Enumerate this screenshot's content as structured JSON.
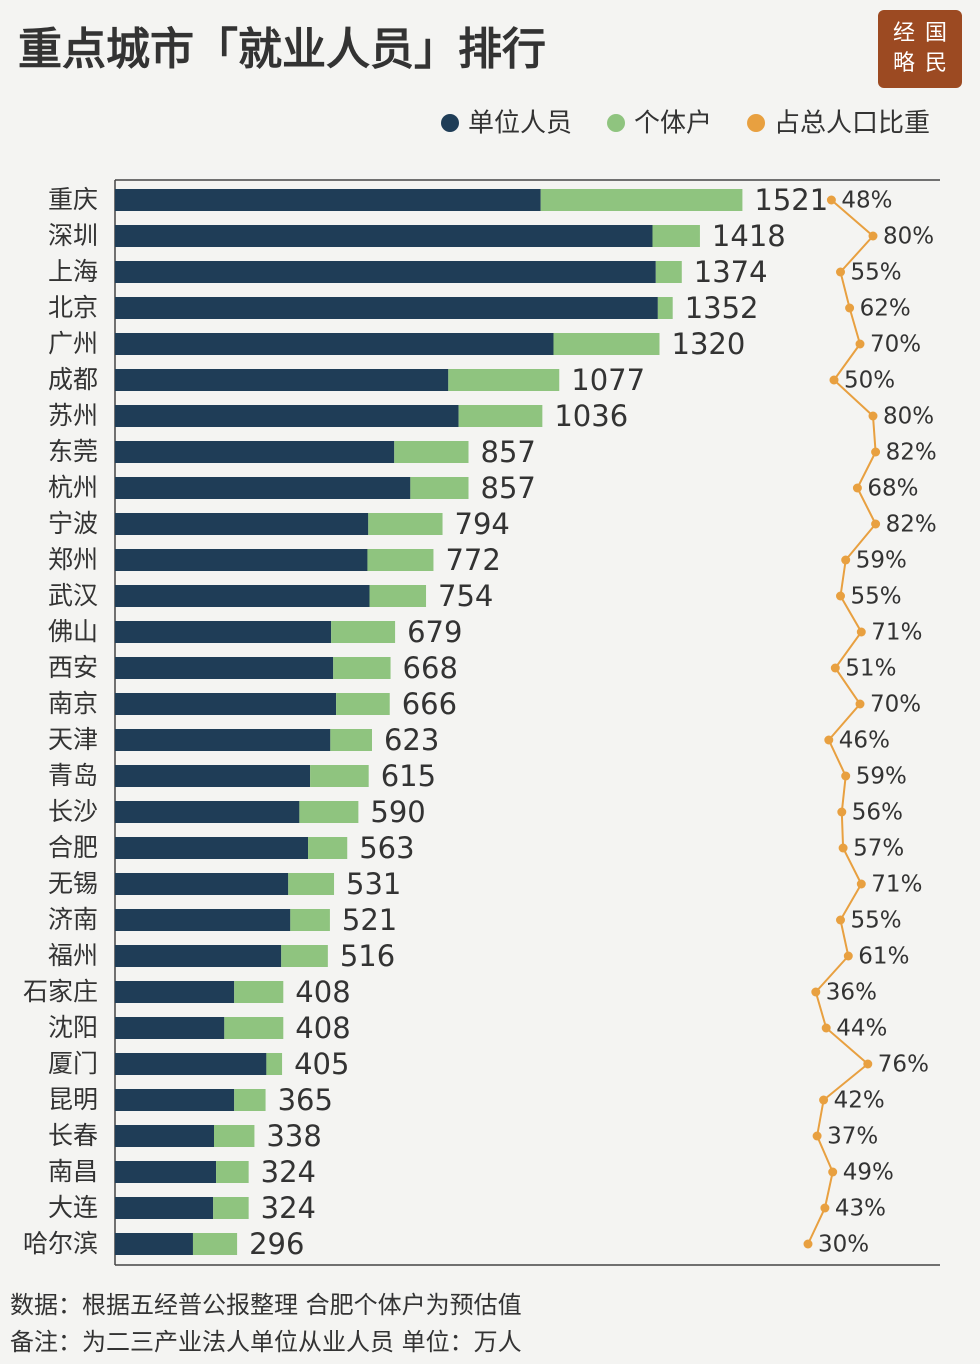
{
  "chart_data": {
    "type": "bar",
    "orientation": "horizontal",
    "title": "重点城市「就业人员」排行",
    "logo": [
      "经",
      "国",
      "略",
      "民"
    ],
    "categories": [
      "重庆",
      "深圳",
      "上海",
      "北京",
      "广州",
      "成都",
      "苏州",
      "东莞",
      "杭州",
      "宁波",
      "郑州",
      "武汉",
      "佛山",
      "西安",
      "南京",
      "天津",
      "青岛",
      "长沙",
      "合肥",
      "无锡",
      "济南",
      "福州",
      "石家庄",
      "沈阳",
      "厦门",
      "昆明",
      "长春",
      "南昌",
      "大连",
      "哈尔滨"
    ],
    "series": [
      {
        "name": "单位人员",
        "color": "#1f3d57",
        "values": [
          1032,
          1303,
          1311,
          1316,
          1063,
          808,
          833,
          677,
          716,
          614,
          612,
          617,
          524,
          529,
          536,
          522,
          473,
          447,
          468,
          420,
          425,
          403,
          289,
          265,
          367,
          289,
          240,
          245,
          238,
          189
        ]
      },
      {
        "name": "个体户",
        "color": "#8fc47f",
        "values": [
          489,
          115,
          63,
          36,
          257,
          269,
          203,
          180,
          141,
          180,
          160,
          137,
          155,
          139,
          130,
          101,
          142,
          143,
          95,
          111,
          96,
          113,
          119,
          143,
          38,
          76,
          98,
          79,
          86,
          107
        ]
      },
      {
        "name": "占总人口比重",
        "type": "line",
        "axis": "x2",
        "color": "#e8a040",
        "values": [
          48,
          80,
          55,
          62,
          70,
          50,
          80,
          82,
          68,
          82,
          59,
          55,
          71,
          51,
          70,
          46,
          59,
          56,
          57,
          71,
          55,
          61,
          36,
          44,
          76,
          42,
          37,
          49,
          43,
          30
        ],
        "value_labels": [
          "48%",
          "80%",
          "55%",
          "62%",
          "70%",
          "50%",
          "80%",
          "82%",
          "68%",
          "82%",
          "59%",
          "55%",
          "71%",
          "51%",
          "70%",
          "46%",
          "59%",
          "56%",
          "57%",
          "71%",
          "55%",
          "61%",
          "36%",
          "44%",
          "76%",
          "42%",
          "37%",
          "49%",
          "43%",
          "30%"
        ]
      }
    ],
    "totals": [
      1521,
      1418,
      1374,
      1352,
      1320,
      1077,
      1036,
      857,
      857,
      794,
      772,
      754,
      679,
      668,
      666,
      623,
      615,
      590,
      563,
      531,
      521,
      516,
      408,
      408,
      405,
      365,
      338,
      324,
      324,
      296
    ],
    "xlim": [
      0,
      2000
    ],
    "x2lim": [
      0,
      100
    ],
    "legend": "top-right",
    "notes": [
      "数据：根据五经普公报整理 合肥个体户为预估值",
      "备注：为二三产业法人单位从业人员 单位：万人"
    ]
  }
}
